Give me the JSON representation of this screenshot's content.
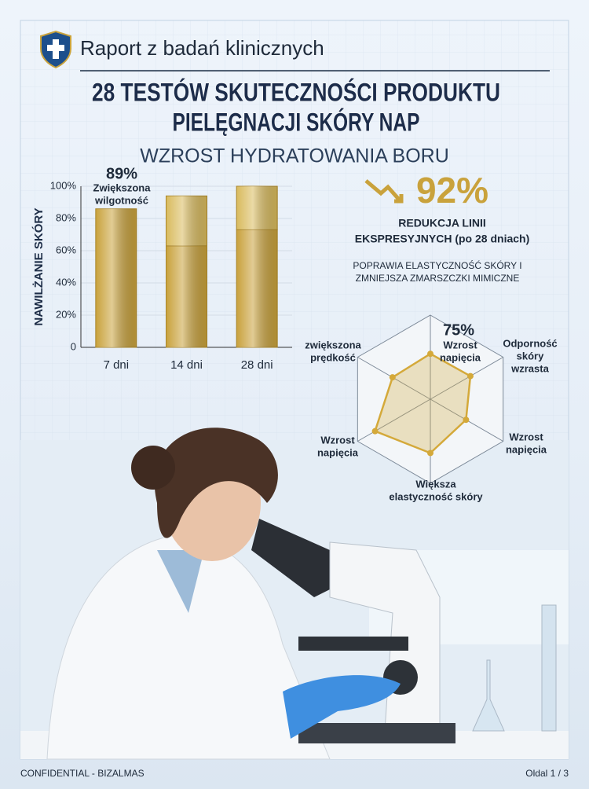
{
  "header": {
    "title": "Raport z badań klinicznych"
  },
  "main_title": [
    "28 TESTÓW SKUTECZNOŚCI PRODUKTU",
    "PIELĘGNACJI SKÓRY NAP"
  ],
  "subtitle": "WZROST HYDRATOWANIA BORU",
  "highlight": {
    "value": "92%",
    "label": [
      "REDUKCJA LINII",
      "EKSPRESYJNYCH (po 28 dniach)"
    ],
    "note": [
      "POPRAWIA ELASTYCZNOŚĆ SKÓRY I",
      "ZMNIEJSZA ZMARSZCZKI MIMICZNE"
    ]
  },
  "chart_data": [
    {
      "type": "bar",
      "ylabel": "NAWILŻANIE SKÓRY",
      "categories": [
        "7 dni",
        "14 dni",
        "28  dni"
      ],
      "series": [
        {
          "color": "#c9a23c",
          "values": [
            86,
            63,
            73
          ]
        },
        {
          "color": "#d9bb5e",
          "values": [
            null,
            31,
            27
          ]
        }
      ],
      "ylim": [
        0,
        100
      ],
      "yticks": [
        0,
        {
          "value": 20,
          "label": "20%"
        },
        {
          "value": 40,
          "label": "40%"
        },
        {
          "value": 60,
          "label": "60%"
        },
        {
          "value": 80,
          "label": "80%"
        },
        {
          "value": 100,
          "label": "100%"
        }
      ],
      "annotation": {
        "value": "89%",
        "text": [
          "Zwiększona",
          "wilgotność"
        ]
      }
    },
    {
      "type": "radar",
      "color": "#d4a93a",
      "rlim": [
        0,
        100
      ],
      "annotation": "75%",
      "categories": [
        [
          "Wzrost",
          "napięcia"
        ],
        [
          "Odporność",
          "skóry",
          "wzrasta"
        ],
        [
          "Wzrost",
          "napięcia"
        ],
        [
          "Większa",
          "elastyczność skóry"
        ],
        [
          "Wzrost",
          "napięcia"
        ],
        [
          "zwiększona",
          "prędkość"
        ]
      ],
      "values": [
        54,
        55,
        49,
        64,
        76,
        52
      ]
    }
  ],
  "footer": {
    "left": "CONFIDENTIAL - BIZALMAS",
    "right": "Oldal 1 / 3"
  }
}
